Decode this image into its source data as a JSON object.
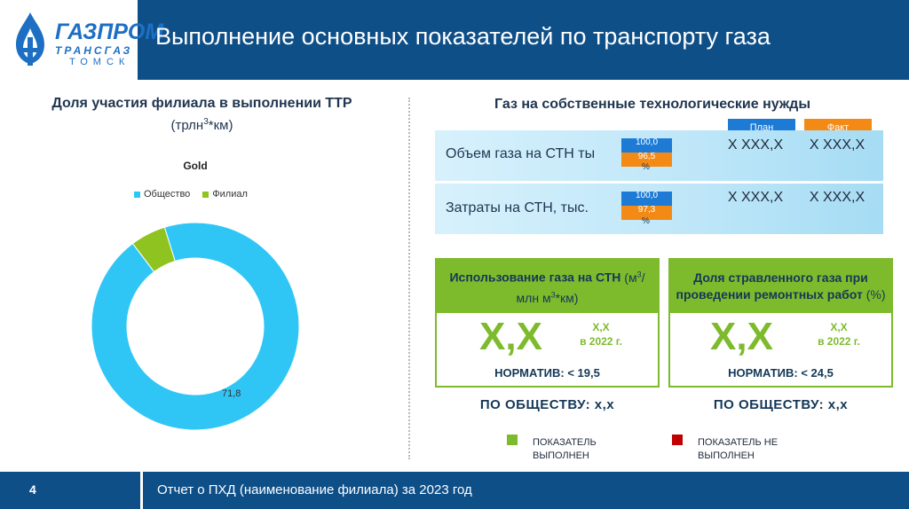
{
  "header": {
    "logo_name": "ГАЗПРОМ",
    "logo_sub1": "ТРАНСГАЗ",
    "logo_sub2": "ТОМСК",
    "title": "Выполнение основных показателей по транспорту газа",
    "bg_color": "#0f4f88"
  },
  "left_panel": {
    "title": "Доля участия филиала в выполнении ТТР",
    "subtitle_pre": "(трлн",
    "subtitle_sup": "3",
    "subtitle_post": "*км)"
  },
  "chart_data": {
    "type": "pie",
    "title": "Gold",
    "categories": [
      "Общество",
      "Филиал"
    ],
    "values": [
      71.8,
      4.2
    ],
    "colors": [
      "#2fc6f6",
      "#8fc31f"
    ],
    "data_labels": [
      "71,8",
      ""
    ],
    "legend_position": "top",
    "donut": true
  },
  "right_panel": {
    "title": "Газ на собственные технологические нужды",
    "plan_label": "План",
    "fact_label": "Факт",
    "plan_color": "#1d7bd6",
    "fact_color": "#f48a16",
    "rows": [
      {
        "label": "Объем газа на СТН ты",
        "mini_blue": "100,0",
        "mini_orange": "96,5",
        "pct": "%",
        "plan": "X XXX,X",
        "fact": "X XXX,X"
      },
      {
        "label": "Затраты на СТН, тыс.",
        "mini_blue": "100,0",
        "mini_orange": "97,3",
        "pct": "%",
        "plan": "X XXX,X",
        "fact": "X XXX,X"
      }
    ]
  },
  "boxes": [
    {
      "head_bold": "Использование газа на СТН",
      "head_normal_pre": "(м",
      "head_sup1": "3",
      "head_normal_mid": "/млн м",
      "head_sup2": "3",
      "head_normal_post": "*км)",
      "big_value": "Х,Х",
      "small_value": "Х,Х",
      "small_year": "в 2022 г.",
      "norm_label": "НОРМАТИВ:",
      "norm_value": "< 19,5",
      "society": "ПО ОБЩЕСТВУ: х,х"
    },
    {
      "head_bold": "Доля стравленного газа при проведении ремонтных работ",
      "head_normal_pre": "(%)",
      "big_value": "Х,Х",
      "small_value": "Х,Х",
      "small_year": "в 2022 г.",
      "norm_label": "НОРМАТИВ:",
      "norm_value": "< 24,5",
      "society": "ПО ОБЩЕСТВУ: х,х"
    }
  ],
  "legend_marks": {
    "done_line1": "ПОКАЗАТЕЛЬ",
    "done_line2": "ВЫПОЛНЕН",
    "done_color": "#7dbb2c",
    "notdone_line1": "ПОКАЗАТЕЛЬ НЕ",
    "notdone_line2": "ВЫПОЛНЕН",
    "notdone_color": "#c00000"
  },
  "footer": {
    "page_number": "4",
    "text": "Отчет о ПХД (наименование филиала) за 2023 год"
  }
}
